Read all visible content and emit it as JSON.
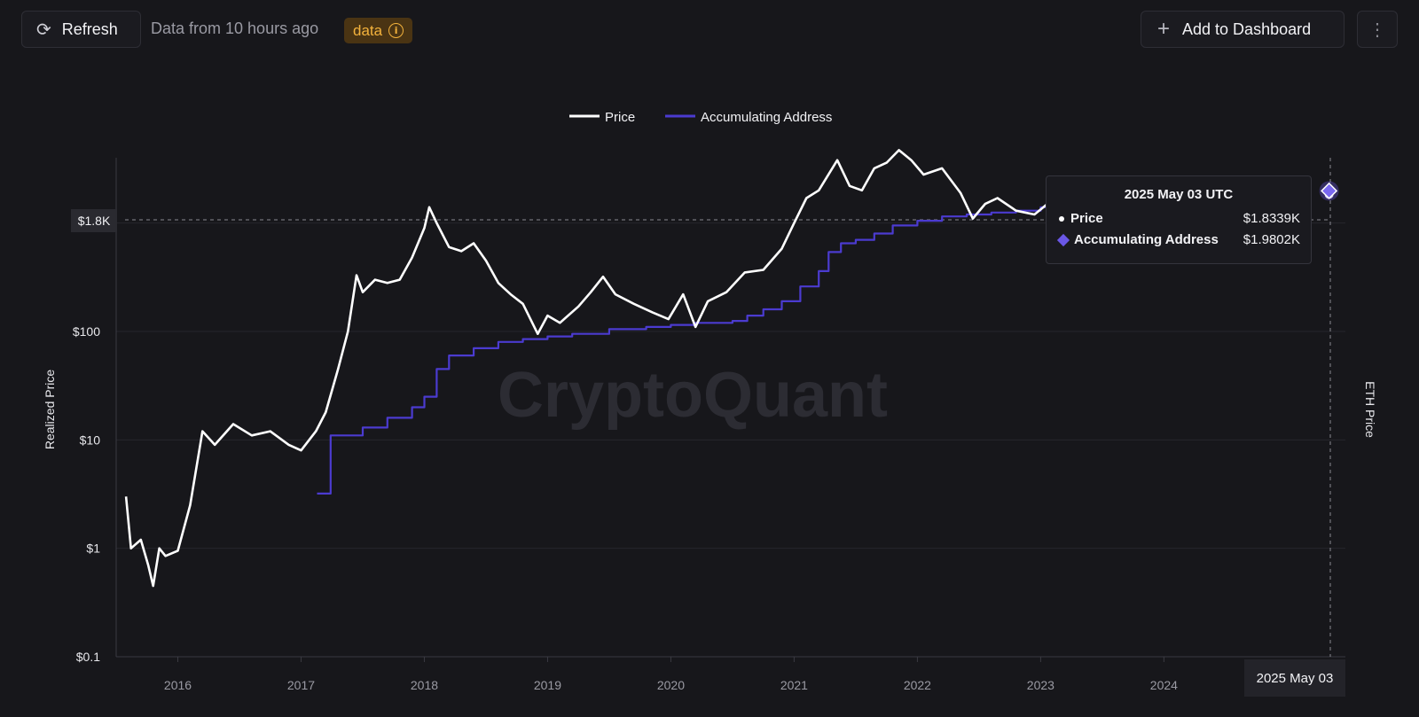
{
  "toolbar": {
    "refresh_label": "Refresh",
    "refresh_icon": "refresh-icon",
    "freshness": "Data from 10 hours ago",
    "badge_label": "data",
    "badge_icon": "info-icon",
    "add_dashboard_label": "Add to Dashboard",
    "add_icon": "plus-icon",
    "more_icon": "vertical-ellipsis-icon"
  },
  "watermark": "CryptoQuant",
  "tooltip": {
    "title": "2025 May 03 UTC",
    "rows": [
      {
        "label": "Price",
        "value": "$1.8339K"
      },
      {
        "label": "Accumulating Address",
        "value": "$1.9802K"
      }
    ]
  },
  "crosshair": {
    "y_label": "$1.8K",
    "x_label": "2025 May 03"
  },
  "colors": {
    "background": "#17171b",
    "price": "#ffffff",
    "accumulating": "#4b3bd0",
    "badge_bg": "#4a3413",
    "badge_text": "#f3b23c"
  },
  "chart_data": {
    "type": "line",
    "yscale": "log",
    "ylabel": "Realized Price",
    "y2label": "ETH Price",
    "y_ticks": [
      {
        "value": 0.1,
        "label": "$0.1"
      },
      {
        "value": 1,
        "label": "$1"
      },
      {
        "value": 10,
        "label": "$10"
      },
      {
        "value": 100,
        "label": "$100"
      },
      {
        "value": 1000,
        "label": "$1K"
      }
    ],
    "x_ticks": [
      "2016",
      "2017",
      "2018",
      "2019",
      "2020",
      "2021",
      "2022",
      "2023",
      "2024"
    ],
    "xlim": [
      2015.5,
      2025.35
    ],
    "ylim": [
      0.1,
      4000
    ],
    "legend": {
      "position": "top-center",
      "entries": [
        "Price",
        "Accumulating Address"
      ]
    },
    "series": [
      {
        "name": "Price",
        "points": [
          [
            2015.58,
            3.0
          ],
          [
            2015.62,
            1.0
          ],
          [
            2015.7,
            1.2
          ],
          [
            2015.76,
            0.7
          ],
          [
            2015.8,
            0.45
          ],
          [
            2015.85,
            1.0
          ],
          [
            2015.9,
            0.85
          ],
          [
            2016.0,
            0.95
          ],
          [
            2016.1,
            2.5
          ],
          [
            2016.2,
            12
          ],
          [
            2016.3,
            9
          ],
          [
            2016.45,
            14
          ],
          [
            2016.6,
            11
          ],
          [
            2016.75,
            12
          ],
          [
            2016.9,
            9
          ],
          [
            2017.0,
            8
          ],
          [
            2017.12,
            12
          ],
          [
            2017.2,
            18
          ],
          [
            2017.3,
            45
          ],
          [
            2017.38,
            100
          ],
          [
            2017.45,
            330
          ],
          [
            2017.5,
            230
          ],
          [
            2017.6,
            300
          ],
          [
            2017.7,
            280
          ],
          [
            2017.8,
            300
          ],
          [
            2017.9,
            480
          ],
          [
            2018.0,
            900
          ],
          [
            2018.04,
            1400
          ],
          [
            2018.1,
            1000
          ],
          [
            2018.2,
            600
          ],
          [
            2018.3,
            550
          ],
          [
            2018.4,
            650
          ],
          [
            2018.5,
            450
          ],
          [
            2018.6,
            280
          ],
          [
            2018.7,
            220
          ],
          [
            2018.8,
            180
          ],
          [
            2018.92,
            95
          ],
          [
            2019.0,
            140
          ],
          [
            2019.1,
            120
          ],
          [
            2019.25,
            170
          ],
          [
            2019.35,
            230
          ],
          [
            2019.45,
            320
          ],
          [
            2019.55,
            220
          ],
          [
            2019.7,
            180
          ],
          [
            2019.85,
            150
          ],
          [
            2019.98,
            130
          ],
          [
            2020.1,
            220
          ],
          [
            2020.2,
            110
          ],
          [
            2020.3,
            190
          ],
          [
            2020.45,
            230
          ],
          [
            2020.6,
            350
          ],
          [
            2020.75,
            370
          ],
          [
            2020.9,
            580
          ],
          [
            2021.0,
            1000
          ],
          [
            2021.1,
            1700
          ],
          [
            2021.2,
            2000
          ],
          [
            2021.35,
            3800
          ],
          [
            2021.45,
            2200
          ],
          [
            2021.55,
            2000
          ],
          [
            2021.65,
            3200
          ],
          [
            2021.75,
            3600
          ],
          [
            2021.85,
            4700
          ],
          [
            2021.95,
            3800
          ],
          [
            2022.05,
            2800
          ],
          [
            2022.2,
            3200
          ],
          [
            2022.35,
            1900
          ],
          [
            2022.45,
            1100
          ],
          [
            2022.55,
            1500
          ],
          [
            2022.65,
            1700
          ],
          [
            2022.8,
            1300
          ],
          [
            2022.95,
            1200
          ],
          [
            2023.1,
            1650
          ]
        ]
      },
      {
        "name": "Accumulating Address",
        "points": [
          [
            2017.13,
            3.2
          ],
          [
            2017.2,
            3.2
          ],
          [
            2017.24,
            11
          ],
          [
            2017.32,
            11
          ],
          [
            2017.5,
            13
          ],
          [
            2017.7,
            16
          ],
          [
            2017.9,
            20
          ],
          [
            2018.0,
            25
          ],
          [
            2018.1,
            45
          ],
          [
            2018.2,
            60
          ],
          [
            2018.4,
            70
          ],
          [
            2018.6,
            80
          ],
          [
            2018.8,
            85
          ],
          [
            2019.0,
            90
          ],
          [
            2019.2,
            95
          ],
          [
            2019.5,
            105
          ],
          [
            2019.8,
            110
          ],
          [
            2020.0,
            115
          ],
          [
            2020.2,
            120
          ],
          [
            2020.5,
            125
          ],
          [
            2020.62,
            140
          ],
          [
            2020.75,
            160
          ],
          [
            2020.9,
            190
          ],
          [
            2021.05,
            260
          ],
          [
            2021.2,
            360
          ],
          [
            2021.28,
            540
          ],
          [
            2021.38,
            650
          ],
          [
            2021.5,
            700
          ],
          [
            2021.65,
            800
          ],
          [
            2021.8,
            950
          ],
          [
            2022.0,
            1050
          ],
          [
            2022.2,
            1150
          ],
          [
            2022.4,
            1200
          ],
          [
            2022.6,
            1250
          ],
          [
            2022.8,
            1300
          ],
          [
            2023.0,
            1400
          ],
          [
            2023.08,
            1430
          ]
        ]
      }
    ],
    "end_markers": {
      "date": 2025.34,
      "Price": 1833.9,
      "Accumulating Address": 1980.2
    }
  }
}
